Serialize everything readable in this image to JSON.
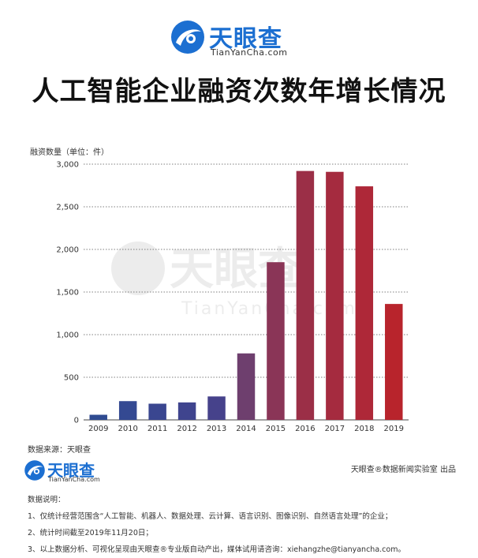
{
  "brand": {
    "name_cn": "天眼查",
    "name_en": "TianYanCha.com"
  },
  "title": "人工智能企业融资次数年增长情况",
  "chart_data": {
    "type": "bar",
    "ylabel": "融资数量（单位：件）",
    "categories": [
      "2009",
      "2010",
      "2011",
      "2012",
      "2013",
      "2014",
      "2015",
      "2016",
      "2017",
      "2018",
      "2019"
    ],
    "values": [
      60,
      220,
      190,
      205,
      275,
      780,
      1850,
      2920,
      2910,
      2740,
      1360
    ],
    "ylim": [
      0,
      3000
    ],
    "yticks": [
      0,
      500,
      1000,
      1500,
      2000,
      2500,
      3000
    ],
    "ytick_labels": [
      "0",
      "500",
      "1,000",
      "1,500",
      "2,000",
      "2,500",
      "3,000"
    ],
    "grid": "horizontal-dotted",
    "colors": [
      "#2f4b91",
      "#344992",
      "#3a4690",
      "#3f448e",
      "#46428b",
      "#6e3f6e",
      "#8a3557",
      "#9b2f47",
      "#a52b3f",
      "#ae2838",
      "#b8242c"
    ]
  },
  "source": "数据来源：天眼查",
  "producer": "天眼查®数据新闻实验室 出品",
  "notes": {
    "heading": "数据说明：",
    "items": [
      "1、仅统计经营范围含“人工智能、机器人、数据处理、云计算、语言识别、图像识别、自然语言处理”的企业；",
      "2、统计时间截至2019年11月20日；",
      "3、以上数据分析、可视化呈现由天眼查®专业版自动产出，媒体试用请咨询：xiehangzhe@tianyancha.com。"
    ]
  }
}
